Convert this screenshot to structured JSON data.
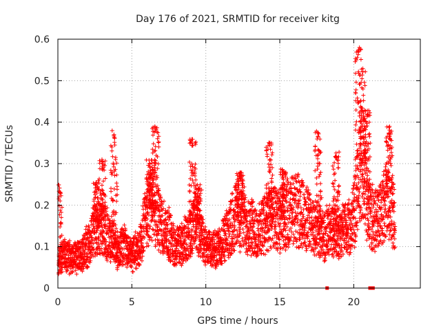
{
  "chart_data": {
    "type": "scatter",
    "title": "Day 176 of 2021, SRMTID for receiver kitg",
    "xlabel": "GPS time / hours",
    "ylabel": "SRMTID / TECUs",
    "xlim": [
      0,
      24.5
    ],
    "ylim": [
      0,
      0.6
    ],
    "grid": true,
    "marker": "+",
    "series_color": "#ff0000",
    "x_ticks": [
      0,
      5,
      10,
      15,
      20
    ],
    "x_tick_labels": [
      "0",
      "5",
      "10",
      "15",
      "20"
    ],
    "y_ticks": [
      0,
      0.1,
      0.2,
      0.3,
      0.4,
      0.5,
      0.6
    ],
    "y_tick_labels": [
      "0",
      "0.1",
      "0.2",
      "0.3",
      "0.4",
      "0.5",
      "0.6"
    ],
    "series": [
      {
        "name": "SRMTID",
        "trend_x": [
          0,
          0.3,
          1,
          1.6,
          2,
          2.4,
          2.7,
          3.2,
          3.6,
          4,
          4.5,
          5,
          5.5,
          6,
          6.5,
          7,
          7.5,
          8,
          8.5,
          9,
          9.3,
          9.7,
          10,
          10.5,
          11,
          11.5,
          12,
          12.5,
          13,
          13.5,
          14,
          14.5,
          15,
          15.5,
          16,
          16.5,
          17,
          17.5,
          18,
          18.5,
          19,
          19.5,
          20,
          20.3,
          20.6,
          21,
          21.5,
          22,
          22.5,
          22.8
        ],
        "trend_y": [
          0.06,
          0.08,
          0.07,
          0.08,
          0.1,
          0.13,
          0.15,
          0.14,
          0.12,
          0.09,
          0.1,
          0.08,
          0.1,
          0.18,
          0.2,
          0.15,
          0.13,
          0.1,
          0.11,
          0.14,
          0.16,
          0.13,
          0.1,
          0.09,
          0.1,
          0.13,
          0.18,
          0.17,
          0.15,
          0.13,
          0.16,
          0.17,
          0.16,
          0.18,
          0.19,
          0.18,
          0.16,
          0.14,
          0.13,
          0.14,
          0.13,
          0.14,
          0.17,
          0.26,
          0.3,
          0.18,
          0.16,
          0.2,
          0.22,
          0.16
        ],
        "bursts": [
          {
            "x": 0.05,
            "y_max": 0.25
          },
          {
            "x": 2.6,
            "y_max": 0.26
          },
          {
            "x": 3.0,
            "y_max": 0.31
          },
          {
            "x": 3.8,
            "y_max": 0.38
          },
          {
            "x": 6.2,
            "y_max": 0.31
          },
          {
            "x": 6.6,
            "y_max": 0.39
          },
          {
            "x": 9.1,
            "y_max": 0.36
          },
          {
            "x": 9.5,
            "y_max": 0.25
          },
          {
            "x": 12.3,
            "y_max": 0.28
          },
          {
            "x": 14.3,
            "y_max": 0.36
          },
          {
            "x": 15.2,
            "y_max": 0.29
          },
          {
            "x": 17.6,
            "y_max": 0.38
          },
          {
            "x": 18.8,
            "y_max": 0.33
          },
          {
            "x": 20.3,
            "y_max": 0.58
          },
          {
            "x": 20.6,
            "y_max": 0.53
          },
          {
            "x": 20.9,
            "y_max": 0.43
          },
          {
            "x": 22.4,
            "y_max": 0.39
          }
        ],
        "zero_points_x": [
          18.2,
          21.1,
          21.2,
          21.3
        ]
      }
    ]
  }
}
